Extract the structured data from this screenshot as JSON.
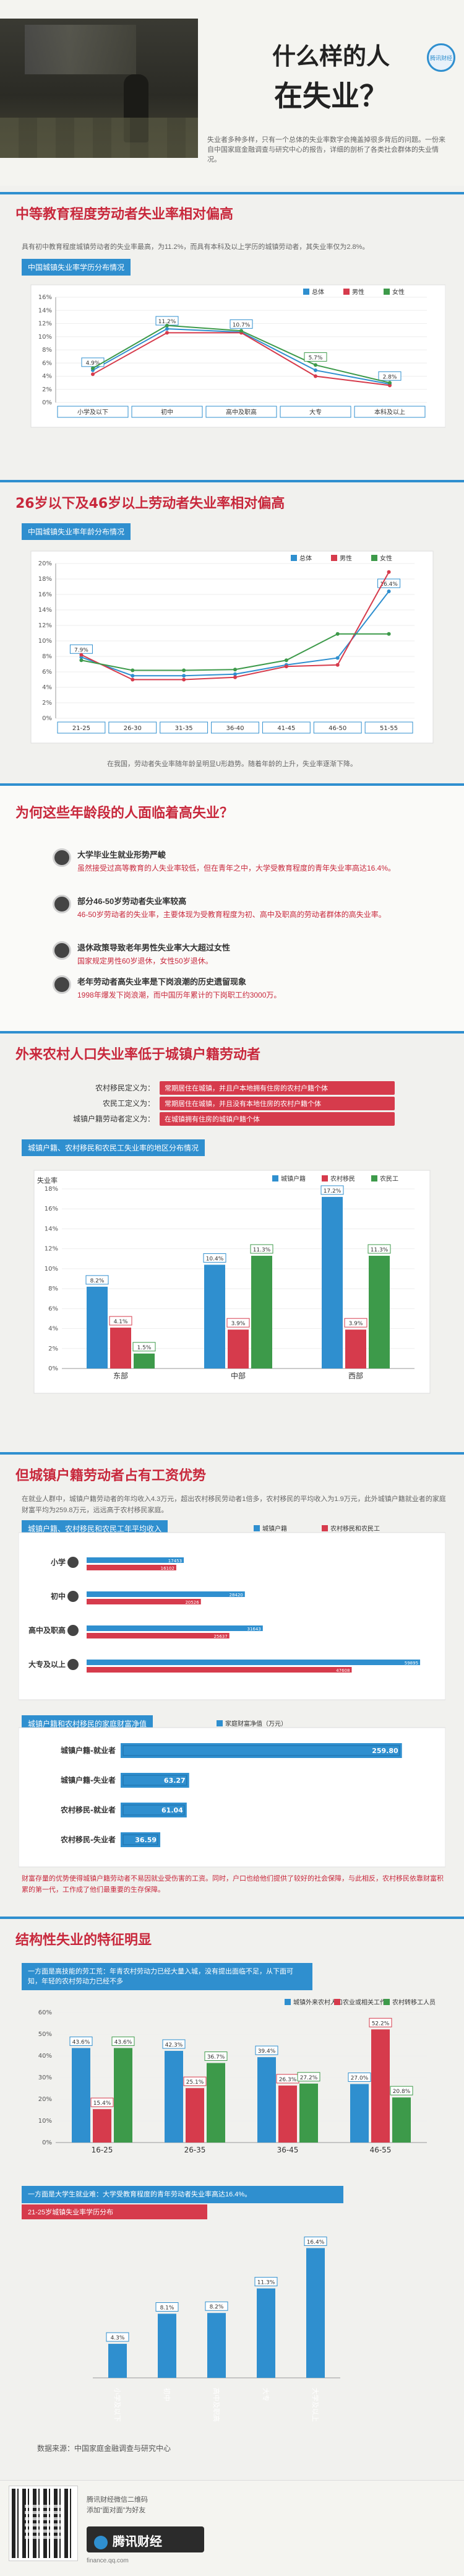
{
  "header": {
    "logo": "腾讯财经",
    "title_line1": "什么样的人",
    "title_line2": "在失业？",
    "intro": "失业者多种多样，只有一个总体的失业率数字会掩盖掉很多背后的问题。一份来自中国家庭金融调查与研究中心的报告，详细的剖析了各类社会群体的失业情况。"
  },
  "s1": {
    "title": "中等教育程度劳动者失业率相对偏高",
    "note": "具有初中教育程度城镇劳动者的失业率最高，为11.2%，而具有本科及以上学历的城镇劳动者，其失业率仅为2.8%。",
    "chart_label": "中国城镇失业率学历分布情况"
  },
  "s2": {
    "title": "26岁以下及46岁以上劳动者失业率相对偏高",
    "chart_label": "中国城镇失业率年龄分布情况",
    "note": "在我国，劳动者失业率随年龄呈明显U形趋势。随着年龄的上升，失业率逐渐下降。"
  },
  "s3": {
    "title": "为何这些年龄段的人面临着高失业？",
    "items": [
      {
        "head": "大学毕业生就业形势严峻",
        "body": "虽然接受过高等教育的人失业率较低，但在青年之中，大学受教育程度的青年失业率高达16.4%。"
      },
      {
        "head": "部分46-50岁劳动者失业率较高",
        "body": "46-50岁劳动者的失业率，主要体现为受教育程度为初、高中及职高的劳动者群体的高失业率。"
      },
      {
        "head": "退休政策导致老年男性失业率大大超过女性",
        "body": "国家规定男性60岁退休，女性50岁退休。"
      },
      {
        "head": "老年劳动者高失业率是下岗浪潮的历史遗留现象",
        "body": "1998年爆发下岗浪潮，而中国历年累计的下岗职工约3000万。"
      }
    ]
  },
  "s4": {
    "title": "外来农村人口失业率低于城镇户籍劳动者",
    "defs": [
      {
        "label": "农村移民定义为：",
        "text": "常期居住在城镇，并且户本地拥有住房的农村户籍个体"
      },
      {
        "label": "农民工定义为：",
        "text": "常期居住在城镇，并且没有本地住房的农村户籍个体"
      },
      {
        "label": "城镇户籍劳动者定义为：",
        "text": "在城镇拥有住房的城镇户籍个体"
      }
    ],
    "chart_label": "城镇户籍、农村移民和农民工失业率的地区分布情况"
  },
  "s5": {
    "title": "但城镇户籍劳动者占有工资优势",
    "note": "在就业人群中，城镇户籍劳动者的年均收入4.3万元，超出农村移民劳动者1倍多，农村移民的平均收入为1.9万元，此外城镇户籍就业者的家庭财富平均为259.8万元，远远高于农村移民家庭。",
    "chart_label": "城镇户籍、农村移民和农民工年平均收入",
    "chart2_label": "城镇户籍和农村移民的家庭财富净值",
    "note2": "财富存量的优势使得城镇户籍劳动者不易因就业受伤害的工资。同时，户口也给他们提供了较好的社会保障，与此相反，农村移民依靠财富积累的第一代，工作成了他们最重要的生存保障。"
  },
  "s6": {
    "title": "结构性失业的特征明显",
    "note": "一方面是高技能的劳工荒：年青农村劳动力已经大量入城，没有提出面临不足，从下面可知，年轻的农村劳动力已经不多",
    "note2": "一方面是大学生就业难：大学受教育程度的青年劳动者失业率高达16.4%。",
    "chart2_label": "21-25岁城镇失业率学历分布"
  },
  "footer": {
    "source": "数据来源：中国家庭金融调查与研究中心",
    "wechat": "腾讯财经微信二维码",
    "qr_caption": "添加“面对面”为好友",
    "brand": "腾讯财经",
    "url": "finance.qq.com"
  },
  "colors": {
    "total": "#2f8fcf",
    "male": "#d63b4c",
    "female": "#3d9a4a"
  },
  "chart_data": [
    {
      "type": "line",
      "title": "中国城镇失业率学历分布情况",
      "categories": [
        "小学及以下",
        "初中",
        "高中及职高",
        "大专",
        "本科及以上"
      ],
      "ylim": [
        0,
        16
      ],
      "yticks": [
        0,
        2,
        4,
        6,
        8,
        10,
        12,
        14,
        16
      ],
      "ytick_labels": [
        "0%",
        "2%",
        "4%",
        "6%",
        "8%",
        "10%",
        "12%",
        "14%",
        "16%"
      ],
      "legend": "top-right",
      "series": [
        {
          "name": "总体",
          "values": [
            4.9,
            11.2,
            10.7,
            4.9,
            2.8
          ],
          "labels": [
            "4.9%",
            "11.2%",
            "10.7%",
            "",
            "2.8%"
          ]
        },
        {
          "name": "男性",
          "values": [
            4.3,
            10.6,
            10.6,
            4.0,
            2.6
          ],
          "labels": [
            "",
            "",
            "",
            "",
            ""
          ]
        },
        {
          "name": "女性",
          "values": [
            5.2,
            11.7,
            10.9,
            5.7,
            3.0
          ],
          "labels": [
            "",
            "",
            "",
            "5.7%",
            ""
          ]
        }
      ]
    },
    {
      "type": "line",
      "title": "中国城镇失业率年龄分布情况",
      "categories": [
        "21-25",
        "26-30",
        "31-35",
        "36-40",
        "41-45",
        "46-50",
        "51-55"
      ],
      "ylim": [
        0,
        20
      ],
      "yticks": [
        0,
        2,
        4,
        6,
        8,
        10,
        12,
        14,
        16,
        18,
        20
      ],
      "ytick_labels": [
        "0%",
        "2%",
        "4%",
        "6%",
        "8%",
        "10%",
        "12%",
        "14%",
        "16%",
        "18%",
        "20%"
      ],
      "legend": "top-right",
      "series": [
        {
          "name": "总体",
          "values": [
            7.9,
            5.5,
            5.5,
            5.7,
            6.9,
            7.8,
            16.4
          ],
          "labels": [
            "7.9%",
            "",
            "",
            "",
            "",
            "",
            "16.4%"
          ]
        },
        {
          "name": "男性",
          "values": [
            8.2,
            5.0,
            5.0,
            5.3,
            6.7,
            6.9,
            18.9
          ],
          "labels": [
            "",
            "",
            "",
            "",
            "",
            "",
            ""
          ]
        },
        {
          "name": "女性",
          "values": [
            7.5,
            6.2,
            6.2,
            6.3,
            7.5,
            10.9,
            10.9
          ],
          "labels": [
            "",
            "",
            "",
            "",
            "",
            "",
            ""
          ]
        }
      ]
    },
    {
      "type": "bar",
      "title": "城镇户籍、农村移民和农民工失业率的地区分布情况",
      "ylabel": "失业率",
      "categories": [
        "东部",
        "中部",
        "西部"
      ],
      "ylim": [
        0,
        18
      ],
      "yticks": [
        0,
        2,
        4,
        6,
        8,
        10,
        12,
        14,
        16,
        18
      ],
      "ytick_labels": [
        "0%",
        "2%",
        "4%",
        "6%",
        "8%",
        "10%",
        "12%",
        "14%",
        "16%",
        "18%"
      ],
      "legend": "top-right",
      "series": [
        {
          "name": "城镇户籍",
          "values": [
            8.2,
            10.4,
            17.2
          ],
          "labels": [
            "8.2%",
            "10.4%",
            "17.2%"
          ]
        },
        {
          "name": "农村移民",
          "values": [
            4.1,
            3.9,
            3.9
          ],
          "labels": [
            "4.1%",
            "3.9%",
            "3.9%"
          ]
        },
        {
          "name": "农民工",
          "values": [
            1.5,
            11.3,
            11.3
          ],
          "labels": [
            "1.5%",
            "11.3%",
            "11.3%"
          ]
        }
      ]
    },
    {
      "type": "bar",
      "orientation": "horizontal",
      "title": "城镇户籍、农村移民和农民工年平均收入",
      "categories": [
        "小学",
        "初中",
        "高中及职高",
        "大专及以上"
      ],
      "xlim": [
        0,
        60000
      ],
      "legend": "top-right",
      "series": [
        {
          "name": "城镇户籍",
          "values": [
            17453,
            28420,
            31643,
            59895
          ],
          "labels": [
            "17453",
            "28420",
            "31643",
            "59895"
          ]
        },
        {
          "name": "农村移民和农民工",
          "values": [
            16102,
            20526,
            25637,
            47608
          ],
          "labels": [
            "16102",
            "20526",
            "25637",
            "47608"
          ]
        }
      ]
    },
    {
      "type": "bar",
      "orientation": "horizontal",
      "title": "城镇户籍和农村移民的家庭财富净值",
      "legend_label": "家庭财富净值（万元）",
      "categories": [
        "城镇户籍-就业者",
        "城镇户籍-失业者",
        "农村移民-就业者",
        "农村移民-失业者"
      ],
      "xlim": [
        0,
        280
      ],
      "series": [
        {
          "name": "家庭财富净值（万元）",
          "values": [
            259.8,
            63.27,
            61.04,
            36.59
          ],
          "labels": [
            "259.80",
            "63.27",
            "61.04",
            "36.59"
          ]
        }
      ]
    },
    {
      "type": "bar",
      "title": "不同年龄段劳动者构成",
      "categories": [
        "16-25",
        "26-35",
        "36-45",
        "46-55"
      ],
      "ylim": [
        0,
        60
      ],
      "yticks": [
        0,
        10,
        20,
        30,
        40,
        50,
        60
      ],
      "ytick_labels": [
        "0%",
        "10%",
        "20%",
        "30%",
        "40%",
        "50%",
        "60%"
      ],
      "legend": "top-right",
      "series": [
        {
          "name": "城镇外来农村人口",
          "values": [
            43.6,
            42.3,
            39.4,
            27.0
          ],
          "labels": [
            "43.6%",
            "42.3%",
            "39.4%",
            "27.0%"
          ]
        },
        {
          "name": "农业或相关工作",
          "values": [
            15.4,
            25.1,
            26.3,
            52.2
          ],
          "labels": [
            "15.4%",
            "25.1%",
            "26.3%",
            "52.2%"
          ]
        },
        {
          "name": "农村转移工人员",
          "values": [
            43.6,
            36.7,
            27.2,
            20.8
          ],
          "labels": [
            "43.6%",
            "36.7%",
            "27.2%",
            "20.8%"
          ]
        }
      ]
    },
    {
      "type": "bar",
      "title": "21-25岁城镇失业率学历分布",
      "categories": [
        "小学及以下",
        "初中",
        "高中及职高",
        "大专",
        "大学及以上"
      ],
      "ylim": [
        0,
        18
      ],
      "series": [
        {
          "name": "",
          "values": [
            4.3,
            8.1,
            8.2,
            11.3,
            16.4
          ],
          "labels": [
            "4.3%",
            "8.1%",
            "8.2%",
            "11.3%",
            "16.4%"
          ]
        }
      ]
    }
  ]
}
